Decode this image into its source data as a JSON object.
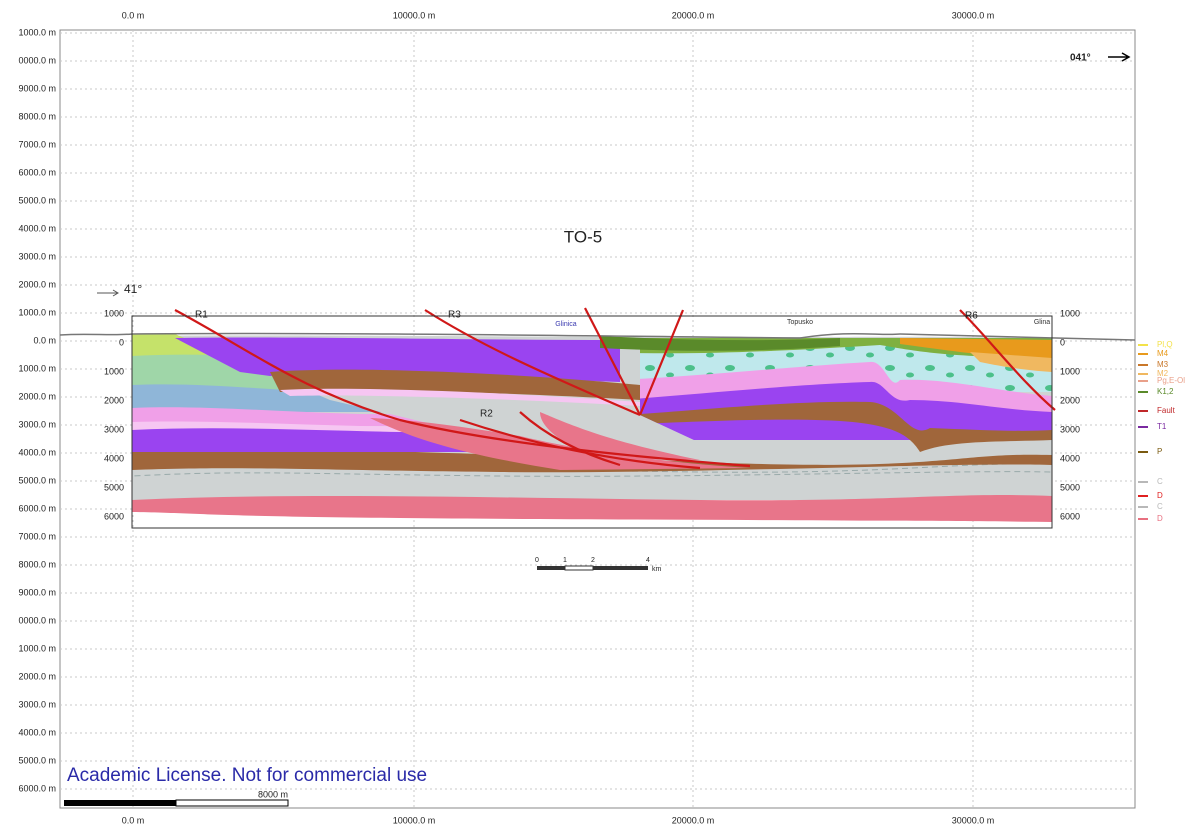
{
  "top_axis": [
    "0.0 m",
    "10000.0 m",
    "20000.0 m",
    "30000.0 m"
  ],
  "bottom_axis": [
    "0.0 m",
    "10000.0 m",
    "20000.0 m",
    "30000.0 m"
  ],
  "left_axis": [
    "1000.0 m",
    "0000.0 m",
    "9000.0 m",
    "8000.0 m",
    "7000.0 m",
    "6000.0 m",
    "5000.0 m",
    "4000.0 m",
    "3000.0 m",
    "2000.0 m",
    "1000.0 m",
    "0.0 m",
    "1000.0 m",
    "2000.0 m",
    "3000.0 m",
    "4000.0 m",
    "5000.0 m",
    "6000.0 m",
    "7000.0 m",
    "8000.0 m",
    "9000.0 m",
    "0000.0 m",
    "1000.0 m",
    "2000.0 m",
    "3000.0 m",
    "4000.0 m",
    "5000.0 m",
    "6000.0 m"
  ],
  "direction": "041°",
  "section": {
    "title": "TO-5",
    "azimuth": "41°",
    "depth_left": [
      "1000",
      "0",
      "1000",
      "2000",
      "3000",
      "4000",
      "5000",
      "6000"
    ],
    "depth_right": [
      "1000",
      "0",
      "1000",
      "2000",
      "3000",
      "4000",
      "5000",
      "6000"
    ],
    "places": [
      "Glinica",
      "Topusko",
      "Glina"
    ],
    "faults": [
      "R1",
      "R2",
      "R3",
      "R6"
    ]
  },
  "legend": [
    {
      "label": "Pl,Q",
      "color": "#f3e24a"
    },
    {
      "label": "M4",
      "color": "#e89a1c"
    },
    {
      "label": "M3",
      "color": "#c9772a"
    },
    {
      "label": "M2",
      "color": "#f0b860"
    },
    {
      "label": "Pg,E-Ol",
      "color": "#e9a08a"
    },
    {
      "label": "K1,2",
      "color": "#5a8a2a"
    },
    {
      "label": "Fault",
      "color": "#c0282a"
    },
    {
      "label": "T1",
      "color": "#7a2aa0"
    },
    {
      "label": "P",
      "color": "#7a5a10"
    },
    {
      "label": "C",
      "color": "#b8b8b8"
    },
    {
      "label": "D",
      "color": "#e02020"
    },
    {
      "label": "C",
      "color": "#b8b8b8"
    },
    {
      "label": "D",
      "color": "#e87080"
    }
  ],
  "scale_bar": {
    "ticks": [
      "0",
      "1",
      "2",
      "4"
    ],
    "unit": "km"
  },
  "view_scale": "8000 m",
  "watermark": "Academic License. Not for commercial use"
}
